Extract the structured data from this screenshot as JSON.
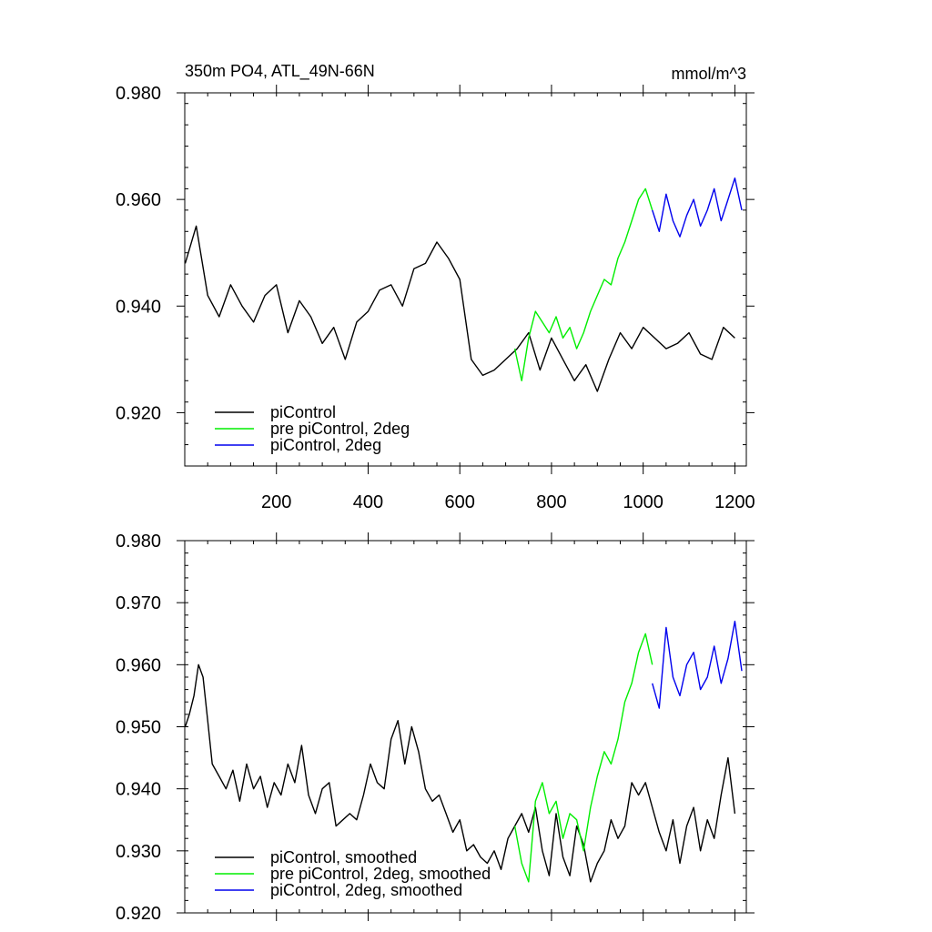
{
  "title": "350m PO4, ATL_49N-66N",
  "units": "mmol/m^3",
  "colors": {
    "piControl": "#000000",
    "pre": "#00ee00",
    "deg2": "#0000ee"
  },
  "chart_data": [
    {
      "type": "line",
      "title": "350m PO4, ATL_49N-66N",
      "units": "mmol/m^3",
      "xlim": [
        0,
        1225
      ],
      "ylim": [
        0.91,
        0.98
      ],
      "x_ticks": [
        200,
        400,
        600,
        800,
        1000,
        1200
      ],
      "x_tick_labels": [
        "200",
        "400",
        "600",
        "800",
        "1000",
        "1200"
      ],
      "y_ticks": [
        0.92,
        0.94,
        0.96,
        0.98
      ],
      "y_tick_labels": [
        "0.920",
        "0.940",
        "0.960",
        "0.980"
      ],
      "legend_position": "bottom-left",
      "series": [
        {
          "name": "piControl",
          "color": "#000000",
          "x": [
            1,
            25,
            50,
            75,
            100,
            125,
            150,
            175,
            200,
            225,
            250,
            275,
            300,
            325,
            350,
            375,
            400,
            425,
            450,
            475,
            500,
            525,
            550,
            575,
            600,
            625,
            650,
            675,
            700,
            725,
            750,
            775,
            800,
            825,
            850,
            875,
            900,
            925,
            950,
            975,
            1000,
            1025,
            1050,
            1075,
            1100,
            1125,
            1150,
            1175,
            1200
          ],
          "values": [
            0.948,
            0.955,
            0.942,
            0.938,
            0.944,
            0.94,
            0.937,
            0.942,
            0.944,
            0.935,
            0.941,
            0.938,
            0.933,
            0.936,
            0.93,
            0.937,
            0.939,
            0.943,
            0.944,
            0.94,
            0.947,
            0.948,
            0.952,
            0.949,
            0.945,
            0.93,
            0.927,
            0.928,
            0.93,
            0.932,
            0.935,
            0.928,
            0.934,
            0.93,
            0.926,
            0.929,
            0.924,
            0.93,
            0.935,
            0.932,
            0.936,
            0.934,
            0.932,
            0.933,
            0.935,
            0.931,
            0.93,
            0.936,
            0.934
          ]
        },
        {
          "name": "pre piControl, 2deg",
          "color": "#00ee00",
          "x": [
            720,
            735,
            750,
            765,
            780,
            795,
            810,
            825,
            840,
            855,
            870,
            885,
            900,
            915,
            930,
            945,
            960,
            975,
            990,
            1005,
            1020
          ],
          "values": [
            0.932,
            0.926,
            0.934,
            0.939,
            0.937,
            0.935,
            0.938,
            0.934,
            0.936,
            0.932,
            0.935,
            0.939,
            0.942,
            0.945,
            0.944,
            0.949,
            0.952,
            0.956,
            0.96,
            0.962,
            0.958
          ]
        },
        {
          "name": "piControl, 2deg",
          "color": "#0000ee",
          "x": [
            1020,
            1035,
            1050,
            1065,
            1080,
            1095,
            1110,
            1125,
            1140,
            1155,
            1170,
            1185,
            1200,
            1215
          ],
          "values": [
            0.958,
            0.954,
            0.961,
            0.956,
            0.953,
            0.957,
            0.96,
            0.955,
            0.958,
            0.962,
            0.956,
            0.96,
            0.964,
            0.958
          ]
        }
      ]
    },
    {
      "type": "line",
      "xlim": [
        0,
        1225
      ],
      "ylim": [
        0.92,
        0.98
      ],
      "x_ticks": [
        200,
        400,
        600,
        800,
        1000,
        1200
      ],
      "x_tick_labels": [],
      "y_ticks": [
        0.92,
        0.93,
        0.94,
        0.95,
        0.96,
        0.97,
        0.98
      ],
      "y_tick_labels": [
        "0.920",
        "0.930",
        "0.940",
        "0.950",
        "0.960",
        "0.970",
        "0.980"
      ],
      "legend_position": "bottom-left",
      "series": [
        {
          "name": "piControl, smoothed",
          "color": "#000000",
          "x": [
            1,
            10,
            20,
            30,
            40,
            50,
            60,
            75,
            90,
            105,
            120,
            135,
            150,
            165,
            180,
            195,
            210,
            225,
            240,
            255,
            270,
            285,
            300,
            315,
            330,
            345,
            360,
            375,
            390,
            405,
            420,
            435,
            450,
            465,
            480,
            495,
            510,
            525,
            540,
            555,
            570,
            585,
            600,
            615,
            630,
            645,
            660,
            675,
            690,
            705,
            720,
            735,
            750,
            765,
            780,
            795,
            810,
            825,
            840,
            855,
            870,
            885,
            900,
            915,
            930,
            945,
            960,
            975,
            990,
            1005,
            1020,
            1035,
            1050,
            1065,
            1080,
            1095,
            1110,
            1125,
            1140,
            1155,
            1170,
            1185,
            1200
          ],
          "values": [
            0.95,
            0.952,
            0.955,
            0.96,
            0.958,
            0.951,
            0.944,
            0.942,
            0.94,
            0.943,
            0.938,
            0.944,
            0.94,
            0.942,
            0.937,
            0.941,
            0.939,
            0.944,
            0.941,
            0.947,
            0.939,
            0.936,
            0.94,
            0.941,
            0.934,
            0.935,
            0.936,
            0.935,
            0.939,
            0.944,
            0.941,
            0.94,
            0.948,
            0.951,
            0.944,
            0.95,
            0.946,
            0.94,
            0.938,
            0.939,
            0.936,
            0.933,
            0.935,
            0.93,
            0.931,
            0.929,
            0.928,
            0.93,
            0.927,
            0.932,
            0.934,
            0.936,
            0.933,
            0.937,
            0.93,
            0.926,
            0.936,
            0.929,
            0.926,
            0.934,
            0.931,
            0.925,
            0.928,
            0.93,
            0.935,
            0.932,
            0.934,
            0.941,
            0.939,
            0.941,
            0.937,
            0.933,
            0.93,
            0.935,
            0.928,
            0.934,
            0.937,
            0.93,
            0.935,
            0.932,
            0.939,
            0.945,
            0.936
          ]
        },
        {
          "name": "pre piControl, 2deg, smoothed",
          "color": "#00ee00",
          "x": [
            720,
            735,
            750,
            765,
            780,
            795,
            810,
            825,
            840,
            855,
            870,
            885,
            900,
            915,
            930,
            945,
            960,
            975,
            990,
            1005,
            1020
          ],
          "values": [
            0.934,
            0.928,
            0.925,
            0.938,
            0.941,
            0.936,
            0.938,
            0.932,
            0.936,
            0.935,
            0.93,
            0.937,
            0.942,
            0.946,
            0.944,
            0.948,
            0.954,
            0.957,
            0.962,
            0.965,
            0.96
          ]
        },
        {
          "name": "piControl, 2deg, smoothed",
          "color": "#0000ee",
          "x": [
            1020,
            1035,
            1050,
            1065,
            1080,
            1095,
            1110,
            1125,
            1140,
            1155,
            1170,
            1185,
            1200,
            1215
          ],
          "values": [
            0.957,
            0.953,
            0.966,
            0.958,
            0.955,
            0.96,
            0.962,
            0.956,
            0.958,
            0.963,
            0.957,
            0.961,
            0.967,
            0.959
          ]
        }
      ]
    }
  ]
}
